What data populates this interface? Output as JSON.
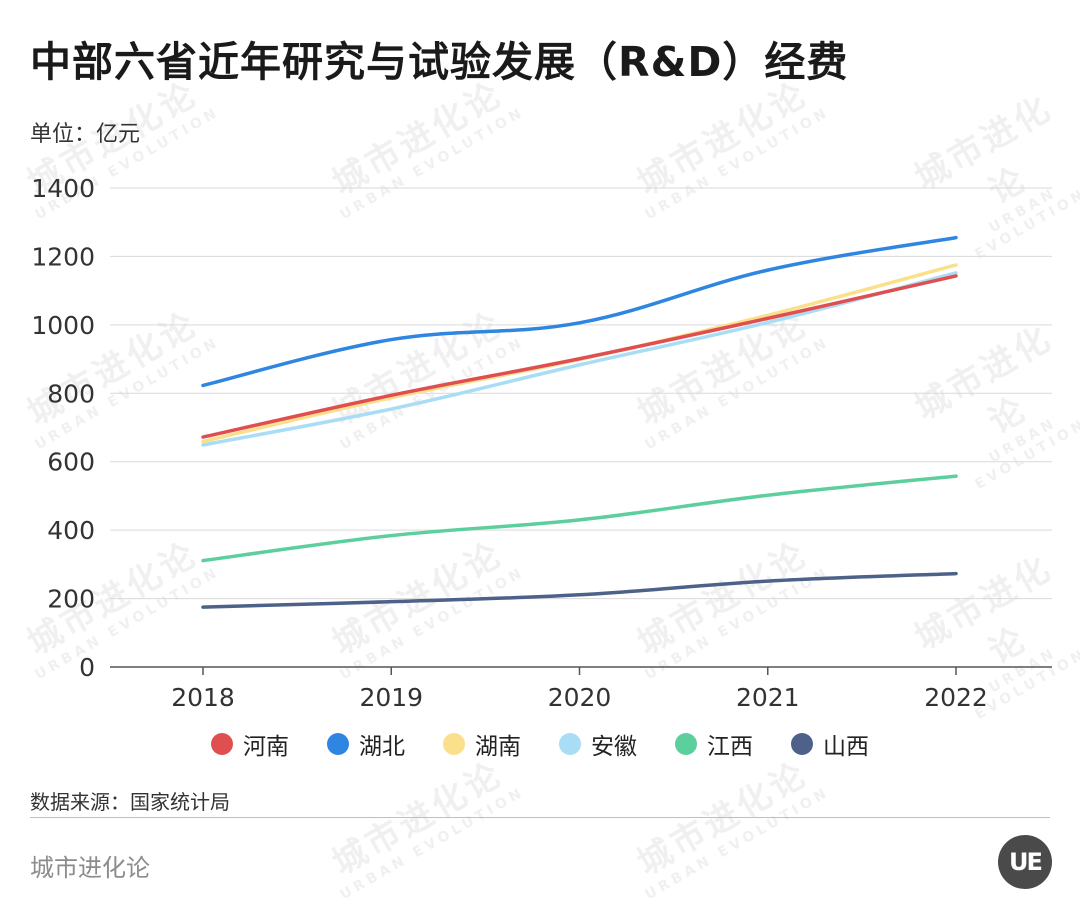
{
  "header": {
    "title": "中部六省近年研究与试验发展（R&D）经费",
    "unit": "单位：亿元"
  },
  "footer": {
    "source": "数据来源：国家统计局",
    "brand": "城市进化论",
    "logo_text": "UE"
  },
  "chart_data": {
    "type": "line",
    "x": [
      "2018",
      "2019",
      "2020",
      "2021",
      "2022"
    ],
    "yticks": [
      "0",
      "200",
      "400",
      "600",
      "800",
      "1000",
      "1200",
      "1400"
    ],
    "ylim": [
      0,
      1400
    ],
    "grid": true,
    "legend_position": "bottom",
    "series": [
      {
        "name": "河南",
        "color": "#e04f4f",
        "values": [
          672,
          794,
          901,
          1019,
          1143
        ]
      },
      {
        "name": "湖北",
        "color": "#2f86e0",
        "values": [
          823,
          957,
          1006,
          1160,
          1255
        ]
      },
      {
        "name": "湖南",
        "color": "#fbe08c",
        "values": [
          659,
          787,
          899,
          1028,
          1175
        ]
      },
      {
        "name": "安徽",
        "color": "#a9dcf5",
        "values": [
          649,
          754,
          883,
          1007,
          1152
        ]
      },
      {
        "name": "江西",
        "color": "#5ccf9c",
        "values": [
          311,
          384,
          430,
          502,
          558
        ]
      },
      {
        "name": "山西",
        "color": "#4d6189",
        "values": [
          175,
          191,
          211,
          251,
          273
        ]
      }
    ]
  }
}
